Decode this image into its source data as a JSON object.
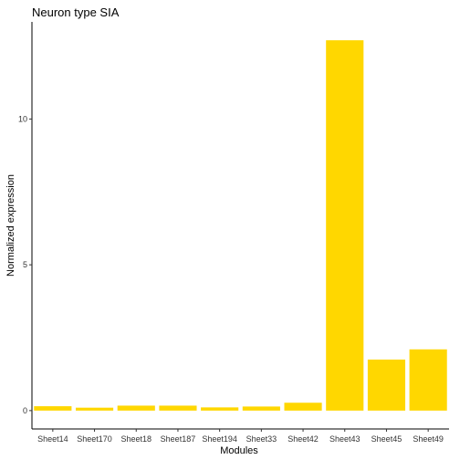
{
  "chart_data": {
    "type": "bar",
    "title": "Neuron type SIA",
    "xlabel": "Modules",
    "ylabel": "Normalized expression",
    "categories": [
      "Sheet14",
      "Sheet170",
      "Sheet18",
      "Sheet187",
      "Sheet194",
      "Sheet33",
      "Sheet42",
      "Sheet43",
      "Sheet45",
      "Sheet49"
    ],
    "values": [
      0.15,
      0.1,
      0.17,
      0.17,
      0.11,
      0.14,
      0.27,
      12.7,
      1.75,
      2.1
    ],
    "yticks": [
      0,
      5,
      10
    ],
    "ylim": [
      -0.63,
      13.33
    ],
    "bar_color": "#FFD700",
    "grid": false,
    "legend": "none"
  }
}
